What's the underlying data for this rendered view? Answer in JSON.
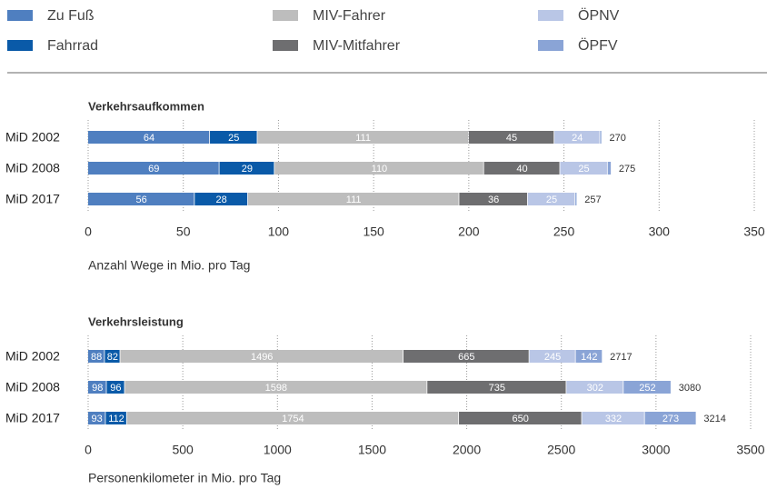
{
  "chart_data": [
    {
      "type": "stacked-bar-horizontal",
      "title": "Verkehrsaufkommen",
      "x_label": "Anzahl Wege in Mio. pro Tag",
      "categories": [
        "MiD 2002",
        "MiD 2008",
        "MiD 2017"
      ],
      "series": [
        {
          "name": "Zu Fuß",
          "color": "#4f7fc0",
          "values": [
            64,
            69,
            56
          ]
        },
        {
          "name": "Fahrrad",
          "color": "#0a5aa8",
          "values": [
            25,
            29,
            28
          ]
        },
        {
          "name": "MIV-Fahrer",
          "color": "#bdbdbd",
          "values": [
            111,
            110,
            111
          ]
        },
        {
          "name": "MIV-Mitfahrer",
          "color": "#6e6e70",
          "values": [
            45,
            40,
            36
          ]
        },
        {
          "name": "ÖPNV",
          "color": "#b9c6e6",
          "values": [
            24,
            25,
            25
          ]
        },
        {
          "name": "ÖPFV",
          "color": "#8aa4d6",
          "values": [
            1,
            2,
            1
          ],
          "show_labels": false
        }
      ],
      "totals": [
        270,
        275,
        257
      ],
      "xlim": [
        0,
        350
      ],
      "xticks": [
        0,
        50,
        100,
        150,
        200,
        250,
        300,
        350
      ],
      "grid": true
    },
    {
      "type": "stacked-bar-horizontal",
      "title": "Verkehrsleistung",
      "x_label": "Personenkilometer in Mio. pro Tag",
      "categories": [
        "MiD 2002",
        "MiD 2008",
        "MiD 2017"
      ],
      "series": [
        {
          "name": "Zu Fuß",
          "color": "#4f7fc0",
          "values": [
            88,
            98,
            93
          ]
        },
        {
          "name": "Fahrrad",
          "color": "#0a5aa8",
          "values": [
            82,
            96,
            112
          ]
        },
        {
          "name": "MIV-Fahrer",
          "color": "#bdbdbd",
          "values": [
            1496,
            1598,
            1754
          ]
        },
        {
          "name": "MIV-Mitfahrer",
          "color": "#6e6e70",
          "values": [
            665,
            735,
            650
          ]
        },
        {
          "name": "ÖPNV",
          "color": "#b9c6e6",
          "values": [
            245,
            302,
            332
          ]
        },
        {
          "name": "ÖPFV",
          "color": "#8aa4d6",
          "values": [
            142,
            252,
            273
          ]
        }
      ],
      "totals": [
        2717,
        3080,
        3214
      ],
      "xlim": [
        0,
        3500
      ],
      "xticks": [
        0,
        500,
        1000,
        1500,
        2000,
        2500,
        3000,
        3500
      ],
      "grid": true
    }
  ]
}
